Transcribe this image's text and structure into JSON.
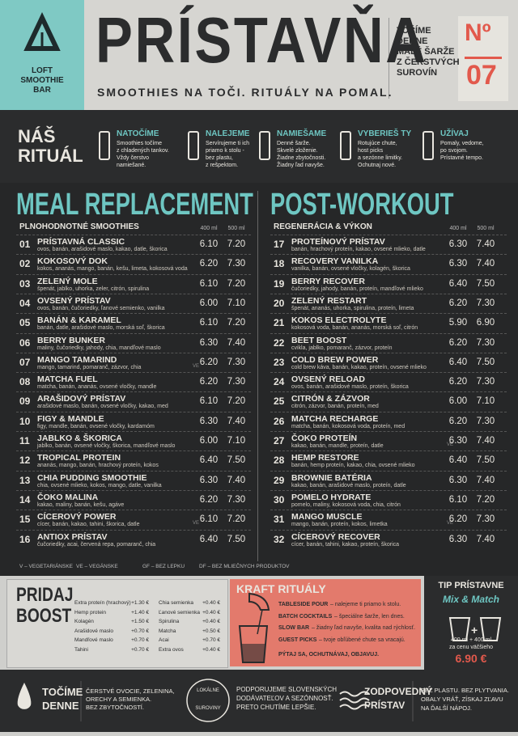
{
  "header": {
    "logo": [
      "LOFT",
      "SMOOTHIE",
      "BAR"
    ],
    "title": "PRÍSTAVŇA",
    "tagline": "SMOOTHIES NA TOČI. RITUÁLY NA POMAL.",
    "claim": [
      "TOČÍME",
      "DENNE",
      "MALÉ ŠARŽE",
      "Z ČERSTVÝCH",
      "SUROVÍN"
    ],
    "issue_label": "Nº",
    "issue_number": "07"
  },
  "ritual": {
    "title": [
      "NÁŠ",
      "RITUÁL"
    ],
    "steps": [
      {
        "title": "NATOČÍME",
        "text": [
          "Smoothies točíme",
          "z chladených tankov.",
          "Vždy čerstvo",
          "namiešané."
        ]
      },
      {
        "title": "NALEJEME",
        "text": [
          "Servírujeme ti ich",
          "priamo k stolu -",
          "bez plastu,",
          "z rešpektom."
        ]
      },
      {
        "title": "NAMIEŠAME",
        "text": [
          "Denné šarže.",
          "Skvelé zloženie.",
          "Žiadne zbytočnosti.",
          "Žiadny ľad navyše."
        ]
      },
      {
        "title": "VYBERIEŠ TY",
        "text": [
          "Rotujúce chute,",
          "host picks",
          "a sezónne limitky.",
          "Ochutnaj nové."
        ]
      },
      {
        "title": "UŽÍVAJ",
        "text": [
          "Pomaly, vedome,",
          "po svojom.",
          "Prístavné tempo."
        ]
      }
    ]
  },
  "menu": {
    "sizes": [
      "400 ml",
      "500 ml"
    ],
    "sections": [
      {
        "title": "MEAL REPLACEMENT",
        "subtitle": "PLNOHODNOTNÉ SMOOTHIES",
        "items": [
          {
            "no": "01",
            "name": "PRÍSTAVNÁ CLASSIC",
            "ingredients": "ovos, banán, arašidové maslo, kakao, datle, škorica",
            "prices": [
              "6.10",
              "7.20"
            ]
          },
          {
            "no": "02",
            "name": "KOKOSOVÝ DOK",
            "ingredients": "kokos, ananás, mango, banán, kešu, limeta, kokosová voda",
            "prices": [
              "6.20",
              "7.30"
            ]
          },
          {
            "no": "03",
            "name": "ZELENÝ MOLE",
            "ingredients": "špenát, jablko, uhorka, zeler, citrón, spirulina",
            "prices": [
              "6.10",
              "7.20"
            ]
          },
          {
            "no": "04",
            "name": "OVSENÝ PRÍSTAV",
            "ingredients": "ovos, banán, čučoriedky, ľanové semienko, vanilka",
            "prices": [
              "6.00",
              "7.10"
            ]
          },
          {
            "no": "05",
            "name": "BANÁN & KARAMEL",
            "ingredients": "banán, datle, arašidové maslo, morská soľ, škorica",
            "prices": [
              "6.10",
              "7.20"
            ]
          },
          {
            "no": "06",
            "name": "BERRY BUNKER",
            "ingredients": "maliny, čučoriedky, jahody, chia, mandľové maslo",
            "prices": [
              "6.30",
              "7.40"
            ]
          },
          {
            "no": "07",
            "name": "MANGO TAMARIND",
            "ingredients": "mango, tamarind, pomaranč, zázvor, chia",
            "tags": "VE",
            "prices": [
              "6.20",
              "7.30"
            ]
          },
          {
            "no": "08",
            "name": "MATCHA FUEL",
            "ingredients": "matcha, banán, ananás, ovsené vločky, mandle",
            "prices": [
              "6.20",
              "7.30"
            ]
          },
          {
            "no": "09",
            "name": "ARAŠIDOVÝ PRÍSTAV",
            "ingredients": "arašidové maslo, banán, ovsené vločky, kakao, med",
            "prices": [
              "6.10",
              "7.20"
            ]
          },
          {
            "no": "10",
            "name": "FIGY & MANDLE",
            "ingredients": "figy, mandle, banán, ovsené vločky, kardamóm",
            "prices": [
              "6.30",
              "7.40"
            ]
          },
          {
            "no": "11",
            "name": "JABLKO & ŠKORICA",
            "ingredients": "jablko, banán, ovsené vločky, škorica, mandľové maslo",
            "prices": [
              "6.00",
              "7.10"
            ]
          },
          {
            "no": "12",
            "name": "TROPICAL PROTEIN",
            "ingredients": "ananás, mango, banán, hrachový proteín, kokos",
            "prices": [
              "6.40",
              "7.50"
            ]
          },
          {
            "no": "13",
            "name": "CHIA PUDDING SMOOTHIE",
            "ingredients": "chia, ovsené mlieko, kokos, mango, datle, vanilka",
            "prices": [
              "6.30",
              "7.40"
            ]
          },
          {
            "no": "14",
            "name": "ČOKO MALINA",
            "ingredients": "kakao, maliny, banán, kešu, agáve",
            "prices": [
              "6.20",
              "7.30"
            ]
          },
          {
            "no": "15",
            "name": "CÍCEROVÝ POWER",
            "ingredients": "cícer, banán, kakao, tahini, škorica, datle",
            "tags": "VE",
            "prices": [
              "6.10",
              "7.20"
            ]
          },
          {
            "no": "16",
            "name": "ANTIOX PRÍSTAV",
            "ingredients": "čučoriedky, acai, červená repa, pomaranč, chia",
            "prices": [
              "6.40",
              "7.50"
            ]
          }
        ]
      },
      {
        "title": "POST-WORKOUT",
        "subtitle": "REGENERÁCIA & VÝKON",
        "items": [
          {
            "no": "17",
            "name": "PROTEÍNOVÝ PRÍSTAV",
            "ingredients": "banán, hrachový proteín, kakao, ovsené mlieko, datle",
            "prices": [
              "6.30",
              "7.40"
            ]
          },
          {
            "no": "18",
            "name": "RECOVERY VANILKA",
            "ingredients": "vanilka, banán, ovsené vločky, kolagén, škorica",
            "prices": [
              "6.30",
              "7.40"
            ]
          },
          {
            "no": "19",
            "name": "BERRY RECOVER",
            "ingredients": "čučoriedky, jahody, banán, proteín, mandľové mlieko",
            "prices": [
              "6.40",
              "7.50"
            ]
          },
          {
            "no": "20",
            "name": "ZELENÝ RESTART",
            "ingredients": "špenát, ananás, uhorka, spirulina, proteín, limeta",
            "prices": [
              "6.20",
              "7.30"
            ]
          },
          {
            "no": "21",
            "name": "KOKOS ELECTROLYTE",
            "ingredients": "kokosová voda, banán, ananás, morská soľ, citrón",
            "prices": [
              "5.90",
              "6.90"
            ]
          },
          {
            "no": "22",
            "name": "BEET BOOST",
            "ingredients": "cvikla, jablko, pomaranč, zázvor, proteín",
            "prices": [
              "6.20",
              "7.30"
            ]
          },
          {
            "no": "23",
            "name": "COLD BREW POWER",
            "ingredients": "cold brew káva, banán, kakao, proteín, ovsené mlieko",
            "prices": [
              "6.40",
              "7.50"
            ]
          },
          {
            "no": "24",
            "name": "OVSENÝ RELOAD",
            "ingredients": "ovos, banán, arašidové maslo, proteín, škorica",
            "prices": [
              "6.20",
              "7.30"
            ]
          },
          {
            "no": "25",
            "name": "CITRÓN & ZÁZVOR",
            "ingredients": "citrón, zázvor, banán, proteín, med",
            "prices": [
              "6.00",
              "7.10"
            ]
          },
          {
            "no": "26",
            "name": "MATCHA RECHARGE",
            "ingredients": "matcha, banán, kokosová voda, proteín, med",
            "prices": [
              "6.20",
              "7.30"
            ]
          },
          {
            "no": "27",
            "name": "ČOKO PROTEÍN",
            "ingredients": "kakao, banán, mandle, proteín, datle",
            "tags": "VE",
            "prices": [
              "6.30",
              "7.40"
            ]
          },
          {
            "no": "28",
            "name": "HEMP RESTORE",
            "ingredients": "banán, hemp proteín, kakao, chia, ovsené mlieko",
            "prices": [
              "6.40",
              "7.50"
            ]
          },
          {
            "no": "29",
            "name": "BROWNIE BATÉRIA",
            "ingredients": "kakao, banán, arašidové maslo, proteín, datle",
            "prices": [
              "6.30",
              "7.40"
            ]
          },
          {
            "no": "30",
            "name": "POMELO HYDRATE",
            "ingredients": "pomelo, maliny, kokosová voda, chia, citrón",
            "prices": [
              "6.10",
              "7.20"
            ]
          },
          {
            "no": "31",
            "name": "MANGO MUSCLE",
            "ingredients": "mango, banán, proteín, kokos, limetka",
            "tags": "VE",
            "prices": [
              "6.20",
              "7.30"
            ]
          },
          {
            "no": "32",
            "name": "CÍCEROVÝ RECOVER",
            "ingredients": "cícer, banán, tahini, kakao, proteín, škorica",
            "prices": [
              "6.30",
              "7.40"
            ]
          }
        ]
      }
    ]
  },
  "legend": [
    "V – VEGETARIÁNSKE",
    "VE – VEGÁNSKE",
    "GF – BEZ LEPKU",
    "DF – BEZ MLIEČNYCH PRODUKTOV"
  ],
  "boost": {
    "title": [
      "PRIDAJ",
      "BOOST"
    ],
    "items": [
      {
        "name": "Extra proteín (hrachový)",
        "price": "+1.30 €"
      },
      {
        "name": "Hemp protein",
        "price": "+1.40 €"
      },
      {
        "name": "Kolagén",
        "price": "+1.50 €"
      },
      {
        "name": "Arašidové maslo",
        "price": "+0.70 €"
      },
      {
        "name": "Mandľové maslo",
        "price": "+0.70 €"
      },
      {
        "name": "Tahini",
        "price": "+0.70 €"
      },
      {
        "name": "Chia semienka",
        "price": "+0.40 €"
      },
      {
        "name": "Ľanové semienka",
        "price": "+0.40 €"
      },
      {
        "name": "Spirulina",
        "price": "+0.40 €"
      },
      {
        "name": "Matcha",
        "price": "+0.50 €"
      },
      {
        "name": "Acai",
        "price": "+0.70 €"
      },
      {
        "name": "Extra ovos",
        "price": "+0.40 €"
      }
    ]
  },
  "kraft": {
    "title": "KRAFT RITUÁLY",
    "items": [
      {
        "name": "TABLESIDE POUR",
        "text": "– nalejeme ti priamo k stolu."
      },
      {
        "name": "BATCH COCKTAILS",
        "text": "– špeciálne šarže, len dnes."
      },
      {
        "name": "SLOW BAR",
        "text": "– žiadny ľad navyše, kvalita nad rýchlosť."
      },
      {
        "name": "GUEST PICKS",
        "text": "– tvoje obľúbené chute sa vracajú."
      }
    ],
    "cta": "PÝTAJ SA, OCHUTNÁVAJ, OBJAVUJ."
  },
  "tip": {
    "title": "TIP PRÍSTAVNE",
    "subtitle": "Mix & Match",
    "text": [
      "400 ml + 400 ml",
      "za cenu väčšieho"
    ],
    "price": "6.90 €"
  },
  "footer": {
    "fresh_title": [
      "TOČÍME",
      "DENNE"
    ],
    "fresh_text": [
      "ČERSTVÉ OVOCIE, ZELENINA,",
      "ORECHY A SEMIENKA.",
      "BEZ ZBYTOČNOSTÍ."
    ],
    "badge": [
      "LOKÁLNE",
      "SUROVINY"
    ],
    "local_text": [
      "PODPORUJEME SLOVENSKÝCH",
      "DODÁVATEĽOV A SEZÓNNOSŤ.",
      "PRETO CHUTÍME LEPŠIE."
    ],
    "eco_title": [
      "ZODPOVEDNÝ",
      "PRÍSTAV"
    ],
    "eco_text": [
      "BEZ PLASTU. BEZ PLYTVANIA.",
      "OBALY VRÁŤ, ZÍSKAJ ZĽAVU",
      "NA ĎALŠÍ NÁPOJ."
    ]
  }
}
